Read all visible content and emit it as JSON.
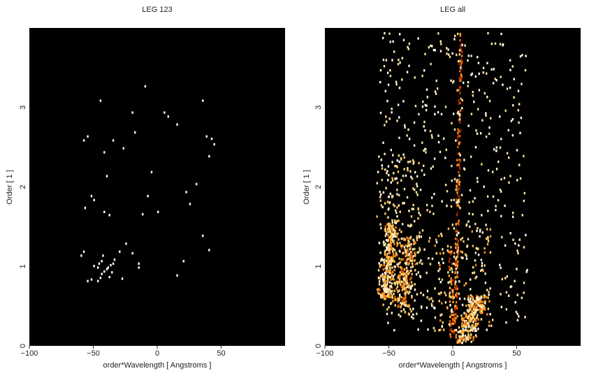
{
  "chart_data": [
    {
      "type": "heatmap",
      "title": "LEG 123",
      "xlabel": "order*Wavelength [ Angstroms ]",
      "ylabel": "Order [ 1 ]",
      "xlim": [
        -100,
        100
      ],
      "ylim": [
        0,
        4
      ],
      "xticks": [
        -100,
        -50,
        0,
        50
      ],
      "yticks": [
        0,
        1,
        2,
        3
      ],
      "background": "#000000",
      "colormap": [
        "#000000",
        "#5a0a00",
        "#b22a00",
        "#ff7a00",
        "#ffd060",
        "#ffffff"
      ],
      "points": [
        [
          -47,
          0.83,
          1
        ],
        [
          -45,
          0.87,
          1
        ],
        [
          -44,
          0.92,
          1
        ],
        [
          -42,
          0.95,
          1
        ],
        [
          -40,
          0.98,
          1
        ],
        [
          -39,
          1.0,
          1
        ],
        [
          -38,
          0.88,
          1
        ],
        [
          -37,
          1.03,
          1
        ],
        [
          -36,
          0.94,
          1
        ],
        [
          -35,
          1.05,
          1
        ],
        [
          -34,
          1.1,
          1
        ],
        [
          -47,
          1.0,
          1
        ],
        [
          -46,
          1.05,
          1
        ],
        [
          -44,
          1.08,
          1
        ],
        [
          -43,
          1.15,
          1
        ],
        [
          -50,
          1.02,
          1
        ],
        [
          -52,
          0.85,
          1
        ],
        [
          -55,
          0.83,
          1
        ],
        [
          -58,
          1.2,
          1
        ],
        [
          -57,
          1.75,
          1
        ],
        [
          -52,
          1.9,
          1
        ],
        [
          -50,
          1.85,
          1
        ],
        [
          -55,
          2.65,
          1
        ],
        [
          -58,
          2.6,
          1
        ],
        [
          -45,
          3.1,
          1
        ],
        [
          -42,
          2.45,
          1
        ],
        [
          -35,
          2.6,
          1
        ],
        [
          -27,
          2.5,
          1
        ],
        [
          -18,
          2.7,
          1
        ],
        [
          -10,
          3.28,
          1
        ],
        [
          -40,
          2.15,
          1
        ],
        [
          -42,
          1.7,
          1
        ],
        [
          -38,
          1.66,
          1
        ],
        [
          -30,
          1.2,
          1
        ],
        [
          -20,
          1.18,
          1
        ],
        [
          -12,
          1.67,
          1
        ],
        [
          -8,
          1.9,
          1
        ],
        [
          -5,
          2.2,
          1
        ],
        [
          5,
          2.95,
          1
        ],
        [
          8,
          2.9,
          1
        ],
        [
          15,
          2.8,
          1
        ],
        [
          22,
          1.95,
          1
        ],
        [
          25,
          1.8,
          1
        ],
        [
          30,
          2.05,
          1
        ],
        [
          35,
          3.1,
          1
        ],
        [
          38,
          2.65,
          1
        ],
        [
          40,
          2.4,
          1
        ],
        [
          44,
          2.55,
          1
        ],
        [
          42,
          2.62,
          1
        ],
        [
          35,
          1.4,
          1
        ],
        [
          40,
          1.22,
          1
        ],
        [
          20,
          1.08,
          1
        ],
        [
          15,
          0.9,
          1
        ],
        [
          -15,
          1.05,
          1
        ],
        [
          -25,
          1.3,
          1
        ],
        [
          -28,
          0.86,
          1
        ],
        [
          -15,
          1.0,
          1
        ],
        [
          0,
          1.7,
          1
        ],
        [
          -20,
          2.95,
          1
        ],
        [
          -60,
          1.15,
          1
        ]
      ]
    },
    {
      "type": "heatmap",
      "title": "LEG all",
      "xlabel": "order*Wavelength [ Angstroms ]",
      "ylabel": "Order [ 1 ]",
      "xlim": [
        -100,
        100
      ],
      "ylim": [
        0,
        4
      ],
      "xticks": [
        -100,
        -50,
        0,
        50
      ],
      "yticks": [
        0,
        1,
        2,
        3
      ],
      "background": "#000000",
      "colormap": [
        "#000000",
        "#5a0a00",
        "#b22a00",
        "#ff7a00",
        "#ffd060",
        "#ffffff"
      ],
      "features": [
        {
          "kind": "band",
          "x_start": -57,
          "x_end": -45,
          "slope": 10,
          "y_range": [
            0.6,
            1.6
          ],
          "halfwidth": 4,
          "count": 260,
          "intensity": [
            0.55,
            1.0
          ]
        },
        {
          "kind": "band",
          "x_start": -45,
          "x_end": -30,
          "slope": 14,
          "y_range": [
            0.5,
            1.4
          ],
          "halfwidth": 4,
          "count": 200,
          "intensity": [
            0.45,
            0.95
          ]
        },
        {
          "kind": "band",
          "x_start": 1,
          "x_end": 26,
          "slope": 45,
          "y_range": [
            0.05,
            0.65
          ],
          "halfwidth": 3,
          "count": 260,
          "intensity": [
            0.55,
            1.0
          ]
        },
        {
          "kind": "line",
          "x_at_bottom": 1,
          "x_at_top": 6,
          "y_range": [
            0.0,
            3.95
          ],
          "halfwidth": 1.2,
          "count": 170,
          "intensity": [
            0.3,
            0.75
          ]
        },
        {
          "kind": "line",
          "x_at_bottom": -1,
          "x_at_top": -6,
          "y_range": [
            0.0,
            1.2
          ],
          "halfwidth": 1.5,
          "count": 50,
          "intensity": [
            0.35,
            0.8
          ]
        },
        {
          "kind": "scatter",
          "x_range": [
            -58,
            58
          ],
          "y_range": [
            0.2,
            3.95
          ],
          "count": 520,
          "intensity": [
            0.85,
            1.0
          ]
        },
        {
          "kind": "scatter",
          "x_range": [
            -60,
            -25
          ],
          "y_range": [
            0.4,
            2.4
          ],
          "count": 160,
          "intensity": [
            0.75,
            1.0
          ]
        },
        {
          "kind": "scatter",
          "x_range": [
            -20,
            30
          ],
          "y_range": [
            0.2,
            1.5
          ],
          "count": 120,
          "intensity": [
            0.6,
            1.0
          ]
        }
      ]
    }
  ]
}
